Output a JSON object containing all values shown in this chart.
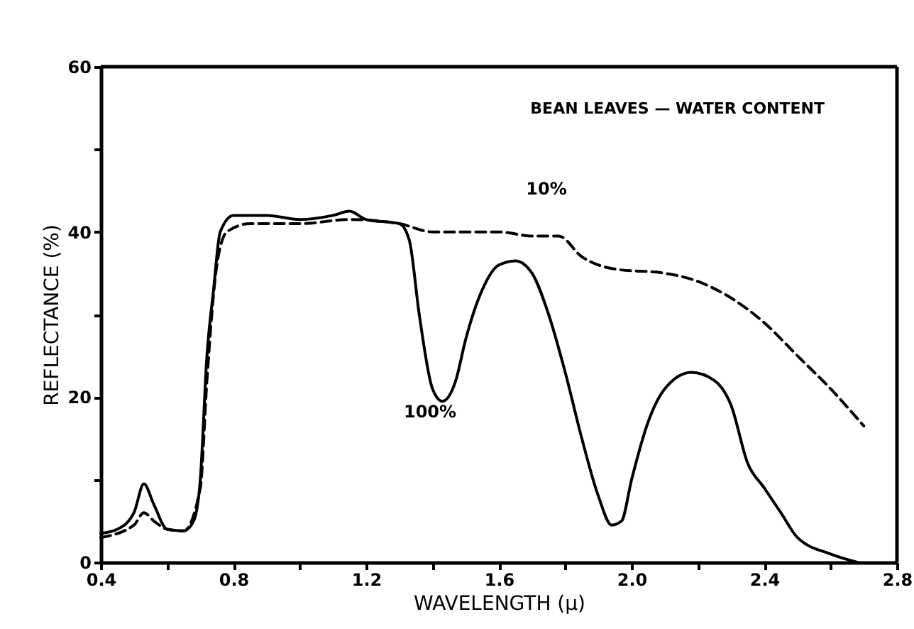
{
  "chart_data": {
    "type": "line",
    "title": "BEAN LEAVES — WATER CONTENT",
    "xlabel": "WAVELENGTH (μ)",
    "ylabel": "REFLECTANCE (%)",
    "xlim": [
      0.4,
      2.8
    ],
    "ylim": [
      0,
      60
    ],
    "xticks": [
      0.4,
      {
        "value": 0.6,
        "label": null
      },
      0.8,
      {
        "value": 1.0,
        "label": null
      },
      1.2,
      {
        "value": 1.4,
        "label": null
      },
      1.6,
      {
        "value": 1.8,
        "label": null
      },
      {
        "value": 2.0,
        "label": "2.0"
      },
      {
        "value": 2.2,
        "label": null
      },
      2.4,
      {
        "value": 2.6,
        "label": null
      },
      2.8
    ],
    "yticks": [
      0,
      {
        "value": 10,
        "label": null
      },
      20,
      {
        "value": 30,
        "label": null
      },
      40,
      {
        "value": 50,
        "label": null
      },
      60
    ],
    "grid": false,
    "marker": "none",
    "series": [
      {
        "color": "#000000",
        "line_style": "solid",
        "x": [
          0.4,
          0.45,
          0.5,
          0.53,
          0.56,
          0.6,
          0.65,
          0.68,
          0.7,
          0.72,
          0.74,
          0.76,
          0.8,
          0.9,
          1.0,
          1.1,
          1.15,
          1.2,
          1.3,
          1.33,
          1.36,
          1.4,
          1.43,
          1.47,
          1.5,
          1.55,
          1.6,
          1.65,
          1.7,
          1.75,
          1.8,
          1.85,
          1.9,
          1.94,
          1.97,
          2.0,
          2.05,
          2.1,
          2.18,
          2.25,
          2.3,
          2.35,
          2.4,
          2.45,
          2.5,
          2.6,
          2.68
        ],
        "values": [
          3.5,
          4,
          6,
          9.5,
          7,
          4,
          3.8,
          5,
          10,
          25,
          33,
          40,
          42,
          42,
          41.5,
          42,
          42.5,
          41.5,
          41,
          39,
          30,
          21,
          19.5,
          22,
          27,
          33,
          36,
          36.5,
          35,
          30,
          23,
          15,
          8,
          4.5,
          5,
          10,
          17,
          21,
          23,
          22,
          19,
          12,
          9,
          6,
          3,
          1,
          0
        ]
      },
      {
        "color": "#000000",
        "line_style": "dashed",
        "x": [
          0.4,
          0.5,
          0.53,
          0.56,
          0.6,
          0.65,
          0.7,
          0.72,
          0.75,
          0.78,
          0.85,
          1.0,
          1.15,
          1.3,
          1.4,
          1.5,
          1.6,
          1.7,
          1.78,
          1.85,
          1.95,
          2.1,
          2.2,
          2.3,
          2.4,
          2.5,
          2.6,
          2.7
        ],
        "values": [
          3,
          4.5,
          6,
          5,
          4,
          3.8,
          9,
          22,
          36,
          40,
          41,
          41,
          41.5,
          41,
          40,
          40,
          40,
          39.5,
          39.5,
          37,
          35.5,
          35,
          34,
          32,
          29,
          25,
          21,
          16.5
        ]
      }
    ],
    "annotations": [
      "10%",
      "100%"
    ]
  }
}
